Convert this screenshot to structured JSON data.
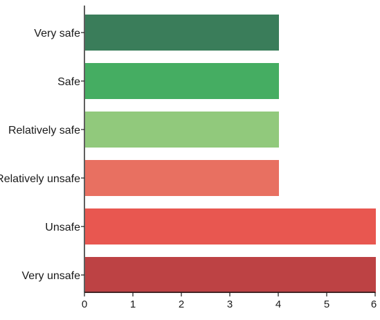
{
  "chart_data": {
    "type": "bar",
    "orientation": "horizontal",
    "categories": [
      "Very safe",
      "Safe",
      "Relatively safe",
      "Relatively unsafe",
      "Unsafe",
      "Very unsafe"
    ],
    "values": [
      4,
      4,
      4,
      4,
      6,
      6
    ],
    "colors": [
      "#3a7d5a",
      "#45ad62",
      "#91c97c",
      "#e87061",
      "#e85750",
      "#bd4244"
    ],
    "xlim": [
      0,
      6
    ],
    "xticks": [
      "0",
      "1",
      "2",
      "3",
      "4",
      "5",
      "6"
    ],
    "title": "",
    "xlabel": "",
    "ylabel": "",
    "grid": false,
    "legend": "none"
  }
}
